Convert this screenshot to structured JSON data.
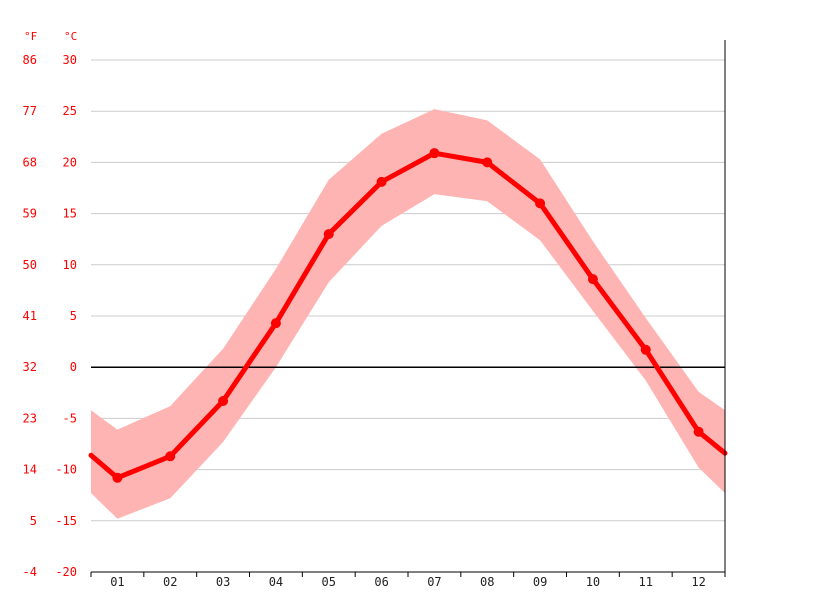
{
  "chart_data": {
    "type": "line",
    "units": {
      "left": "°F",
      "right": "°C"
    },
    "categories": [
      "01",
      "02",
      "03",
      "04",
      "05",
      "06",
      "07",
      "08",
      "09",
      "10",
      "11",
      "12"
    ],
    "celsius_ticks": [
      30,
      25,
      20,
      15,
      10,
      5,
      0,
      -5,
      -10,
      -15,
      -20
    ],
    "fahrenheit_ticks": [
      86,
      77,
      68,
      59,
      50,
      41,
      32,
      23,
      14,
      5,
      -4
    ],
    "ylim": [
      -20,
      30
    ],
    "series": [
      {
        "values": [
          -10.8,
          -8.7,
          -3.3,
          4.3,
          13.0,
          18.1,
          20.9,
          20.0,
          16.0,
          8.6,
          1.7,
          -6.3
        ]
      }
    ],
    "band": {
      "upper": [
        -6.1,
        -3.8,
        1.8,
        9.6,
        18.3,
        22.8,
        25.2,
        24.1,
        20.3,
        12.3,
        4.8,
        -2.4
      ],
      "lower": [
        -14.8,
        -12.8,
        -7.3,
        0.0,
        8.3,
        13.8,
        16.9,
        16.2,
        12.4,
        5.5,
        -1.3,
        -9.8
      ]
    },
    "edge_values": {
      "left": {
        "mean": -8.6,
        "upper": -4.2,
        "lower": -12.3
      },
      "right": {
        "mean": -8.4,
        "upper": -4.2,
        "lower": -12.3
      }
    },
    "grid": true,
    "colors": {
      "line": "#ff0000",
      "band": "#ffb4b4",
      "grid": "#cccccc",
      "zero_line": "#000000",
      "axis": "#000000"
    }
  }
}
